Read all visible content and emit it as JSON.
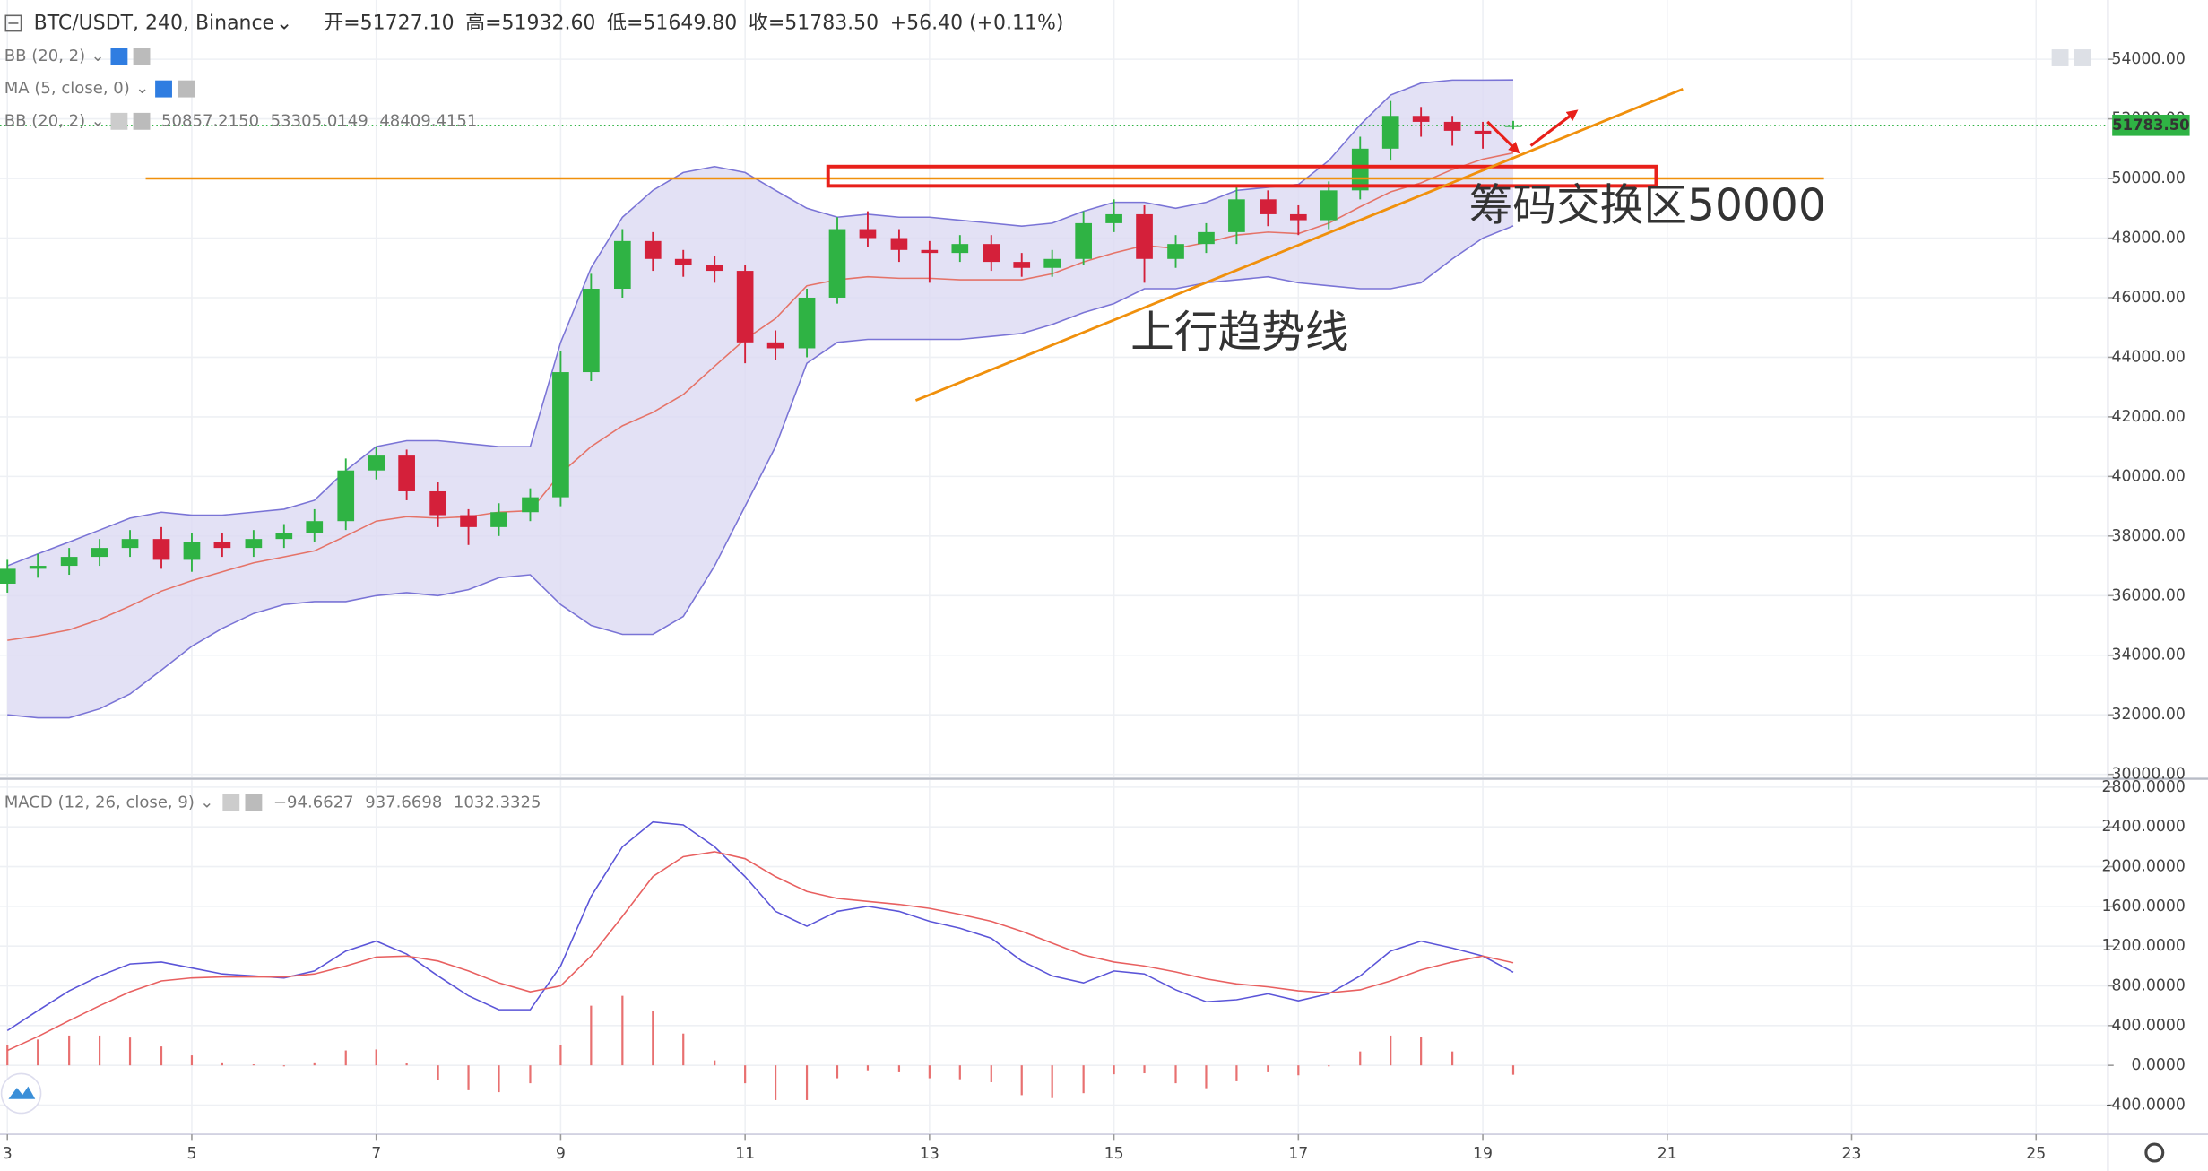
{
  "chart_data": [
    {
      "type": "candlestick",
      "title": "BTC/USDT, 240, Binance",
      "ohlc_readout": [
        "开=51727.10",
        "高=51932.60",
        "低=51649.80",
        "收=51783.50"
      ],
      "change_readout": "+56.40 (+0.11%)",
      "readout_color": "#2a9d3f",
      "indicators": [
        {
          "title": "BB (20, 2)"
        },
        {
          "title": "MA (5, close, 0)"
        },
        {
          "title": "BB (20, 2)",
          "readouts": [
            {
              "value": 50857.215,
              "label": "50857.2150",
              "color": "#e8760c"
            },
            {
              "value": 53305.0149,
              "label": "53305.0149",
              "color": "#3b36c9"
            },
            {
              "value": 48409.4151,
              "label": "48409.4151",
              "color": "#2b2a9e"
            }
          ]
        }
      ],
      "x": [
        3,
        3.33,
        3.67,
        4,
        4.33,
        4.67,
        5,
        5.33,
        5.67,
        6,
        6.33,
        6.67,
        7,
        7.33,
        7.67,
        8,
        8.33,
        8.67,
        9,
        9.33,
        9.67,
        10,
        10.33,
        10.67,
        11,
        11.33,
        11.67,
        12,
        12.33,
        12.67,
        13,
        13.33,
        13.67,
        14,
        14.33,
        14.67,
        15,
        15.33,
        15.67,
        16,
        16.33,
        16.67,
        17,
        17.33,
        17.67,
        18,
        18.33,
        18.67,
        19,
        19.33
      ],
      "open": [
        36400,
        36900,
        37000,
        37300,
        37600,
        37900,
        37200,
        37800,
        37600,
        37900,
        38100,
        38500,
        40200,
        40700,
        39500,
        38700,
        38300,
        38800,
        39300,
        43500,
        46300,
        47900,
        47300,
        47100,
        46900,
        44500,
        44300,
        46000,
        48300,
        48000,
        47600,
        47500,
        47800,
        47200,
        47000,
        47300,
        48500,
        48800,
        47300,
        47800,
        48200,
        49300,
        48800,
        48600,
        49600,
        51000,
        52100,
        51900,
        51600,
        51727.1
      ],
      "high": [
        37200,
        37400,
        37600,
        37900,
        38200,
        38300,
        38100,
        38100,
        38200,
        38400,
        38900,
        40600,
        41000,
        40900,
        39800,
        38900,
        39100,
        39600,
        44200,
        46800,
        48300,
        48200,
        47600,
        47400,
        47100,
        44900,
        46300,
        48700,
        48900,
        48300,
        47900,
        48100,
        48100,
        47500,
        47600,
        48900,
        49300,
        49100,
        48100,
        48500,
        49800,
        49600,
        49100,
        49900,
        51400,
        52600,
        52400,
        52100,
        51900,
        51932.6
      ],
      "low": [
        36100,
        36600,
        36700,
        37000,
        37300,
        36900,
        36800,
        37300,
        37300,
        37600,
        37800,
        38200,
        39900,
        39200,
        38300,
        37700,
        38000,
        38500,
        39000,
        43200,
        46000,
        46900,
        46700,
        46500,
        43800,
        43900,
        44000,
        45800,
        47700,
        47200,
        46500,
        47200,
        46900,
        46700,
        46700,
        47100,
        48200,
        46500,
        47000,
        47500,
        47800,
        48400,
        48100,
        48300,
        49300,
        50600,
        51400,
        51100,
        51000,
        51649.8
      ],
      "close": [
        36900,
        37000,
        37300,
        37600,
        37900,
        37200,
        37800,
        37600,
        37900,
        38100,
        38500,
        40200,
        40700,
        39500,
        38700,
        38300,
        38800,
        39300,
        43500,
        46300,
        47900,
        47300,
        47100,
        46900,
        44500,
        44300,
        46000,
        48300,
        48000,
        47600,
        47500,
        47800,
        47200,
        47000,
        47300,
        48500,
        48800,
        47300,
        47800,
        48200,
        49300,
        48800,
        48600,
        49600,
        51000,
        52100,
        51900,
        51600,
        51500,
        51783.5
      ],
      "up_color": "#2fb344",
      "down_color": "#d4203a",
      "bands": {
        "upper": [
          37000,
          37400,
          37800,
          38200,
          38600,
          38800,
          38700,
          38700,
          38800,
          38900,
          39200,
          40200,
          41000,
          41200,
          41200,
          41100,
          41000,
          41000,
          44500,
          47000,
          48700,
          49600,
          50200,
          50400,
          50200,
          49600,
          49000,
          48700,
          48800,
          48700,
          48700,
          48600,
          48500,
          48400,
          48500,
          48900,
          49200,
          49200,
          49000,
          49200,
          49600,
          49700,
          49800,
          50600,
          51800,
          52800,
          53200,
          53300,
          53300,
          53305.0149
        ],
        "lower": [
          32000,
          31900,
          31900,
          32200,
          32700,
          33500,
          34300,
          34900,
          35400,
          35700,
          35800,
          35800,
          36000,
          36100,
          36000,
          36200,
          36600,
          36700,
          35700,
          35000,
          34700,
          34700,
          35300,
          37000,
          39000,
          41000,
          43800,
          44500,
          44600,
          44600,
          44600,
          44600,
          44700,
          44800,
          45100,
          45500,
          45800,
          46300,
          46300,
          46500,
          46600,
          46700,
          46500,
          46400,
          46300,
          46300,
          46500,
          47300,
          48000,
          48409.4151
        ],
        "basis": [
          34500,
          34650,
          34850,
          35200,
          35650,
          36150,
          36500,
          36800,
          37100,
          37300,
          37500,
          38000,
          38500,
          38650,
          38600,
          38650,
          38800,
          38850,
          40100,
          41000,
          41700,
          42150,
          42750,
          43700,
          44600,
          45300,
          46400,
          46600,
          46700,
          46650,
          46650,
          46600,
          46600,
          46600,
          46800,
          47200,
          47500,
          47750,
          47650,
          47850,
          48100,
          48200,
          48150,
          48500,
          49050,
          49550,
          49850,
          50300,
          50650,
          50857.215
        ],
        "line_color": "#7a74d6",
        "fill": "#dcdaf3",
        "basis_color": "#e57368"
      },
      "xlim": [
        2.92,
        25.78
      ],
      "xticks": [
        3,
        5,
        7,
        9,
        11,
        13,
        15,
        17,
        19,
        21,
        23,
        25
      ],
      "ylim": [
        29900,
        55990
      ],
      "yticks": [
        {
          "value": 30000,
          "label": "30000.00"
        },
        {
          "value": 32000,
          "label": "32000.00"
        },
        {
          "value": 34000,
          "label": "34000.00"
        },
        {
          "value": 36000,
          "label": "36000.00"
        },
        {
          "value": 38000,
          "label": "38000.00"
        },
        {
          "value": 40000,
          "label": "40000.00"
        },
        {
          "value": 42000,
          "label": "42000.00"
        },
        {
          "value": 44000,
          "label": "44000.00"
        },
        {
          "value": 46000,
          "label": "46000.00"
        },
        {
          "value": 48000,
          "label": "48000.00"
        },
        {
          "value": 50000,
          "label": "50000.00"
        },
        {
          "value": 52000,
          "label": "52000.00"
        },
        {
          "value": 54000,
          "label": "54000.00"
        }
      ],
      "grid": true,
      "price_label": {
        "value": 51783.5,
        "label": "51783.50",
        "color": "#2fb344"
      },
      "annotations": [
        {
          "type": "hline",
          "y": 50000,
          "x": [
            4.5,
            22.7
          ],
          "color": "#f0900c"
        },
        {
          "type": "rect",
          "x": [
            11.9,
            20.88
          ],
          "y": [
            49750,
            50400
          ],
          "color": "#e8201a"
        },
        {
          "type": "segment",
          "x": [
            12.85,
            21.17
          ],
          "y": [
            42550,
            53000
          ],
          "color": "#f0900c"
        },
        {
          "type": "arrow",
          "x": [
            19.05,
            19.38
          ],
          "y": [
            51900,
            50900
          ],
          "color": "#e8201a"
        },
        {
          "type": "arrow",
          "x": [
            19.52,
            20.01
          ],
          "y": [
            51100,
            52250
          ],
          "color": "#e8201a"
        },
        {
          "type": "text",
          "text": "筹码交换区50000",
          "x": [
            18.85
          ],
          "y": [
            49000
          ],
          "color": "#e8201a"
        },
        {
          "type": "text",
          "text": "上行趋势线",
          "x": [
            15.18
          ],
          "y": [
            44730
          ],
          "color": "#e8201a"
        }
      ]
    },
    {
      "type": "line",
      "title": "MACD (12, 26, close, 9)",
      "readouts": [
        {
          "value": -94.6627,
          "label": "−94.6627",
          "color": "#e03c3c"
        },
        {
          "value": 937.6698,
          "label": "937.6698",
          "color": "#3b36c9"
        },
        {
          "value": 1032.3325,
          "label": "1032.3325",
          "color": "#e03c3c"
        }
      ],
      "x": [
        3,
        3.33,
        3.67,
        4,
        4.33,
        4.67,
        5,
        5.33,
        5.67,
        6,
        6.33,
        6.67,
        7,
        7.33,
        7.67,
        8,
        8.33,
        8.67,
        9,
        9.33,
        9.67,
        10,
        10.33,
        10.67,
        11,
        11.33,
        11.67,
        12,
        12.33,
        12.67,
        13,
        13.33,
        13.67,
        14,
        14.33,
        14.67,
        15,
        15.33,
        15.67,
        16,
        16.33,
        16.67,
        17,
        17.33,
        17.67,
        18,
        18.33,
        18.67,
        19,
        19.33
      ],
      "series": [
        {
          "type": "bar",
          "color": "#e87070",
          "values": [
            200,
            260,
            300,
            300,
            280,
            190,
            100,
            30,
            10,
            -10,
            30,
            150,
            160,
            20,
            -150,
            -250,
            -270,
            -180,
            200,
            600,
            700,
            550,
            320,
            50,
            -180,
            -350,
            -350,
            -130,
            -50,
            -70,
            -130,
            -140,
            -170,
            -300,
            -330,
            -280,
            -90,
            -80,
            -180,
            -230,
            -160,
            -70,
            -100,
            -10,
            140,
            300,
            290,
            140,
            0,
            -94.6627
          ]
        },
        {
          "type": "line",
          "color": "#5b55d8",
          "values": [
            350,
            550,
            750,
            900,
            1020,
            1040,
            980,
            920,
            900,
            880,
            950,
            1150,
            1250,
            1120,
            900,
            700,
            560,
            560,
            1000,
            1700,
            2200,
            2450,
            2420,
            2200,
            1900,
            1550,
            1400,
            1550,
            1600,
            1550,
            1450,
            1380,
            1280,
            1050,
            900,
            830,
            950,
            920,
            760,
            640,
            660,
            720,
            650,
            720,
            900,
            1150,
            1250,
            1180,
            1100,
            937.6698
          ]
        },
        {
          "type": "line",
          "color": "#e86060",
          "values": [
            150,
            290,
            450,
            600,
            740,
            850,
            880,
            890,
            890,
            890,
            920,
            1000,
            1090,
            1100,
            1050,
            950,
            830,
            740,
            800,
            1100,
            1500,
            1900,
            2100,
            2150,
            2080,
            1900,
            1750,
            1680,
            1650,
            1620,
            1580,
            1520,
            1450,
            1350,
            1230,
            1110,
            1040,
            1000,
            940,
            870,
            820,
            790,
            750,
            730,
            760,
            850,
            960,
            1040,
            1100,
            1032.3325
          ]
        }
      ],
      "xlim": [
        2.92,
        25.78
      ],
      "xticks": [
        3,
        5,
        7,
        9,
        11,
        13,
        15,
        17,
        19,
        21,
        23,
        25
      ],
      "ylim": [
        -680,
        2870
      ],
      "yticks": [
        {
          "value": -400,
          "label": "-400.0000"
        },
        {
          "value": 0,
          "label": "0.0000"
        },
        {
          "value": 400,
          "label": "400.0000"
        },
        {
          "value": 800,
          "label": "800.0000"
        },
        {
          "value": 1200,
          "label": "1200.0000"
        },
        {
          "value": 1600,
          "label": "1600.0000"
        },
        {
          "value": 2000,
          "label": "2000.0000"
        },
        {
          "value": 2400,
          "label": "2400.0000"
        },
        {
          "value": 2800,
          "label": "2800.0000"
        }
      ],
      "grid": true
    }
  ]
}
